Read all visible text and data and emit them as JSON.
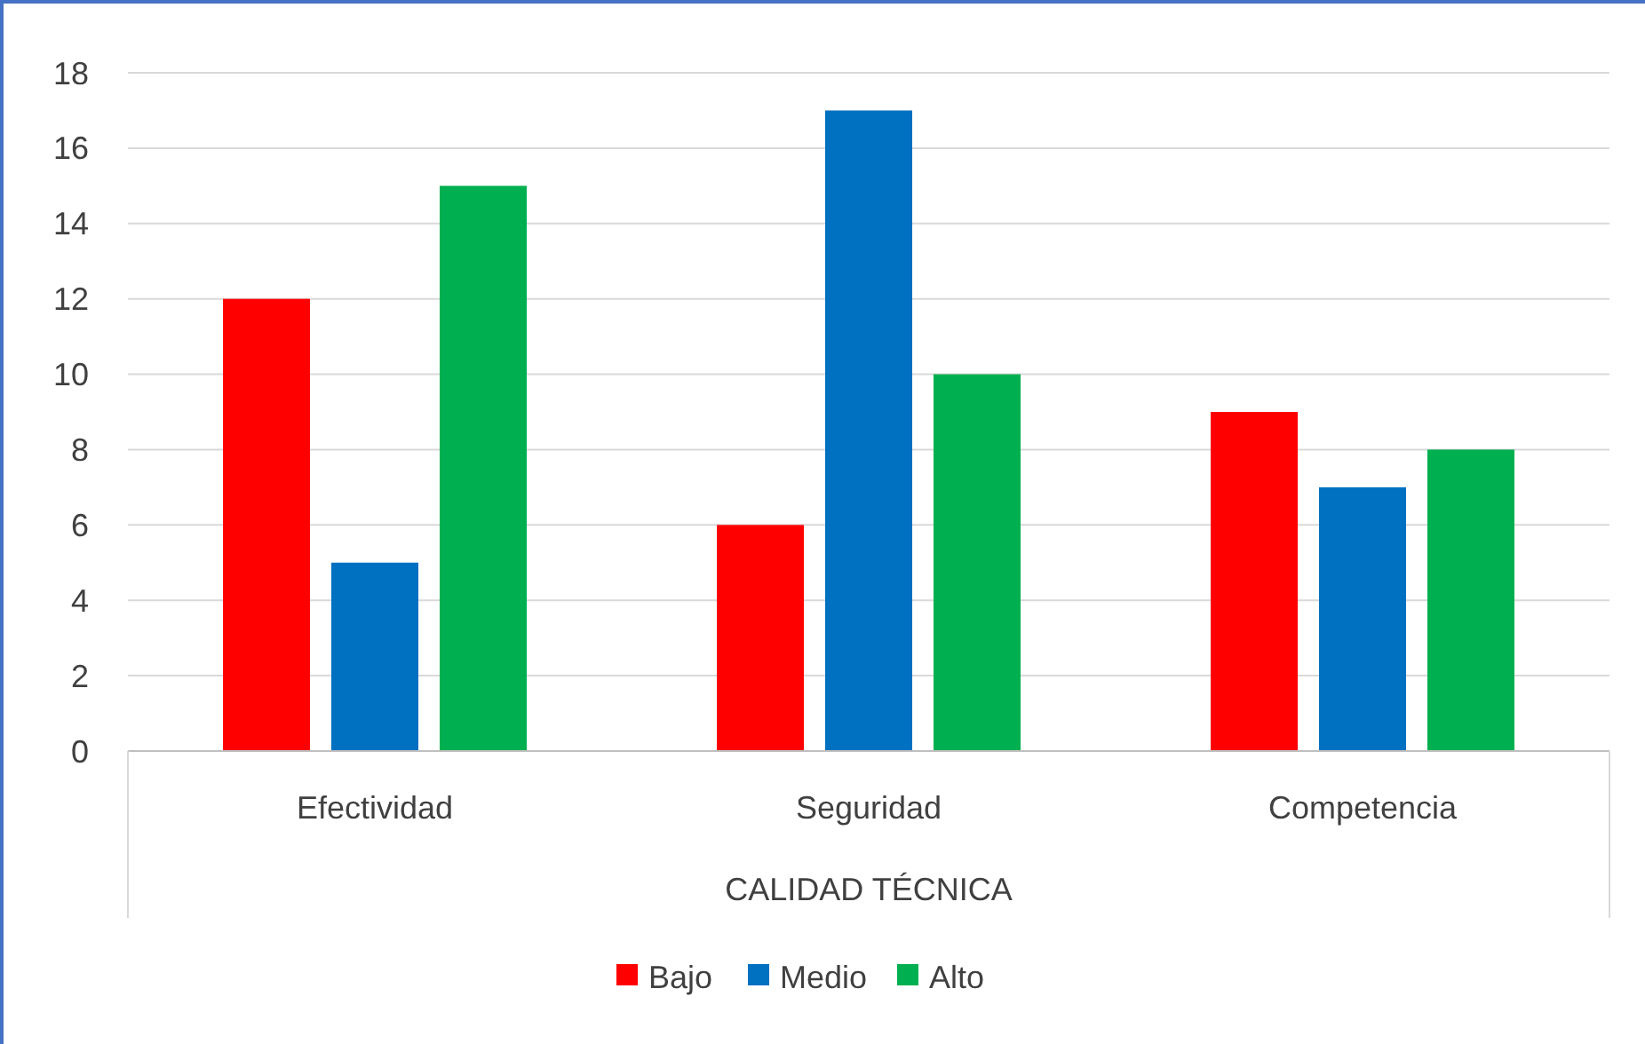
{
  "chart_data": {
    "type": "bar",
    "xlabel": "CALIDAD TÉCNICA",
    "categories": [
      "Efectividad",
      "Seguridad",
      "Competencia"
    ],
    "series": [
      {
        "name": "Bajo",
        "color": "#ff0000",
        "values": [
          12,
          6,
          9
        ]
      },
      {
        "name": "Medio",
        "color": "#0070c0",
        "values": [
          5,
          17,
          7
        ]
      },
      {
        "name": "Alto",
        "color": "#00b050",
        "values": [
          15,
          10,
          8
        ]
      }
    ],
    "ylim": [
      0,
      18
    ],
    "yticks": [
      0,
      2,
      4,
      6,
      8,
      10,
      12,
      14,
      16,
      18
    ],
    "grid": "y",
    "legend": "bottom"
  }
}
